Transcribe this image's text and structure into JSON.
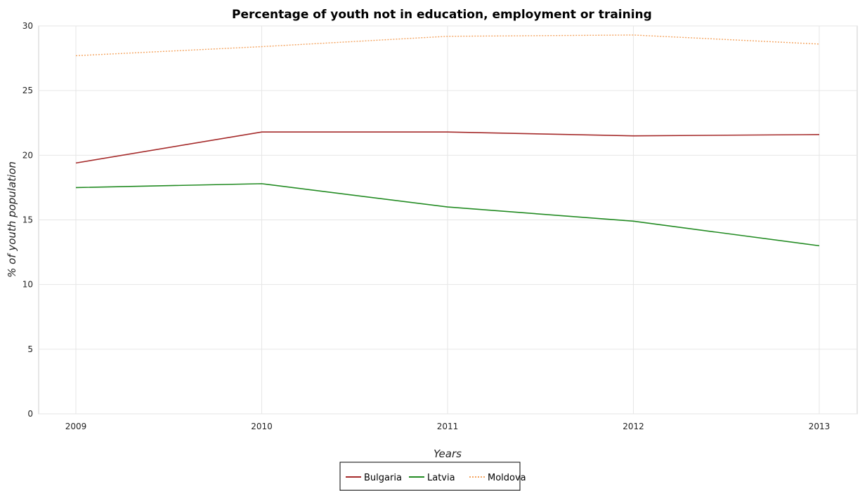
{
  "chart_data": {
    "type": "line",
    "title": "Percentage of youth not in education, employment or training",
    "xlabel": "Years",
    "ylabel": "% of youth population",
    "categories": [
      "2009",
      "2010",
      "2011",
      "2012",
      "2013"
    ],
    "yticks": [
      "0",
      "5",
      "10",
      "15",
      "20",
      "25",
      "30"
    ],
    "ylim": [
      0,
      30
    ],
    "grid": true,
    "legend_position": "bottom-center",
    "series": [
      {
        "name": "Bulgaria",
        "color": "#a52a2a",
        "dash": "solid",
        "values": [
          19.4,
          21.8,
          21.8,
          21.5,
          21.6
        ]
      },
      {
        "name": "Latvia",
        "color": "#228b22",
        "dash": "solid",
        "values": [
          17.5,
          17.8,
          16.0,
          14.9,
          13.0
        ]
      },
      {
        "name": "Moldova",
        "color": "#f4a460",
        "dash": "dotted",
        "values": [
          27.7,
          28.4,
          29.2,
          29.3,
          28.6
        ]
      }
    ]
  }
}
